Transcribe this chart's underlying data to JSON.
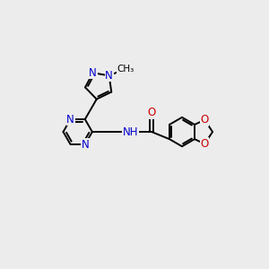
{
  "bg_color": "#ececec",
  "bond_color": "#000000",
  "N_color": "#0000cc",
  "O_color": "#cc0000",
  "lw": 1.4,
  "fs": 8.5,
  "fig_size": [
    3.0,
    3.0
  ],
  "dpi": 100,
  "xlim": [
    0,
    10
  ],
  "ylim": [
    0,
    10
  ]
}
